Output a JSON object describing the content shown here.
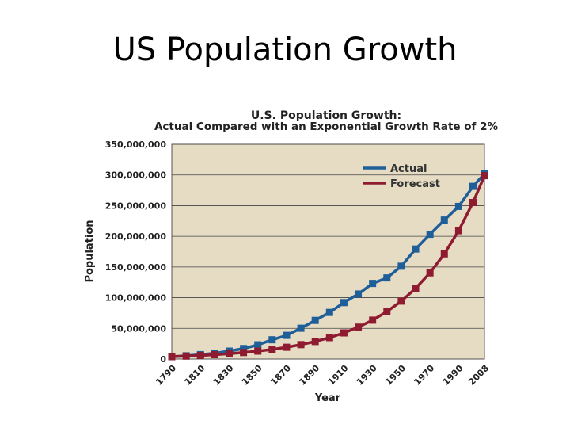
{
  "slide": {
    "title": "US Population Growth"
  },
  "chart_data": {
    "type": "line",
    "title": "U.S. Population Growth:",
    "subtitle": "Actual Compared with an Exponential Growth Rate of 2%",
    "xlabel": "Year",
    "ylabel": "Population",
    "ylim": [
      0,
      350000000
    ],
    "y_ticks": [
      "0",
      "50,000,000",
      "100,000,000",
      "150,000,000",
      "200,000,000",
      "250,000,000",
      "300,000,000",
      "350,000,000"
    ],
    "x_tick_labels": [
      "1790",
      "1810",
      "1830",
      "1850",
      "1870",
      "1890",
      "1910",
      "1930",
      "1950",
      "1970",
      "1990",
      "2008"
    ],
    "x": [
      1790,
      1800,
      1810,
      1820,
      1830,
      1840,
      1850,
      1860,
      1870,
      1880,
      1890,
      1900,
      1910,
      1920,
      1930,
      1940,
      1950,
      1960,
      1970,
      1980,
      1990,
      2000,
      2008
    ],
    "grid": true,
    "legend_position": "top-right",
    "plot_background": "#e6dcc4",
    "series": [
      {
        "name": "Actual",
        "color": "#1f5f99",
        "values": [
          3900000,
          5300000,
          7200000,
          9600000,
          12900000,
          17100000,
          23200000,
          31400000,
          38600000,
          50200000,
          63000000,
          76000000,
          92000000,
          106000000,
          123200000,
          132200000,
          151300000,
          179300000,
          203300000,
          226500000,
          248700000,
          281400000,
          302000000
        ]
      },
      {
        "name": "Forecast",
        "color": "#8e1b30",
        "values": [
          3900000,
          4800000,
          5800000,
          7100000,
          8700000,
          10600000,
          12900000,
          15700000,
          19200000,
          23500000,
          28600000,
          34900000,
          42600000,
          52000000,
          63400000,
          77400000,
          94400000,
          115200000,
          140500000,
          171400000,
          209100000,
          255100000,
          298800000
        ]
      }
    ]
  }
}
